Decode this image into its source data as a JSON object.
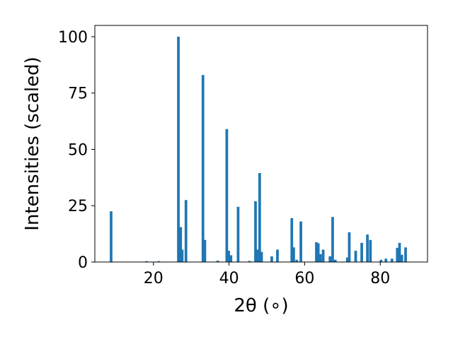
{
  "chart_data": {
    "type": "bar",
    "xlabel": "2θ (∘)",
    "ylabel": "Intensities (scaled)",
    "xlim": [
      4.5,
      92.5
    ],
    "ylim": [
      0,
      105
    ],
    "xticks": [
      20,
      40,
      60,
      80
    ],
    "yticks": [
      0,
      25,
      50,
      75,
      100
    ],
    "bar_color": "#1f77b4",
    "bar_width_deg": 0.7,
    "x": [
      8.8,
      18.2,
      21.4,
      26.6,
      27.2,
      27.6,
      28.6,
      33.1,
      33.6,
      37.0,
      39.4,
      39.9,
      40.5,
      42.4,
      45.4,
      47.0,
      47.5,
      48.1,
      48.6,
      51.3,
      52.8,
      56.6,
      57.1,
      57.9,
      59.0,
      63.1,
      63.6,
      64.2,
      64.9,
      66.7,
      67.4,
      68.1,
      71.3,
      71.8,
      73.5,
      75.1,
      76.6,
      77.4,
      80.2,
      81.5,
      83.1,
      84.5,
      85.1,
      85.7,
      86.7
    ],
    "values": [
      22.5,
      0.4,
      0.4,
      100,
      15.5,
      5.5,
      27.5,
      83,
      9.8,
      0.6,
      59,
      5.0,
      3.0,
      24.5,
      0.5,
      27,
      5.5,
      39.5,
      4.5,
      2.5,
      5.5,
      19.5,
      6.5,
      1.0,
      18,
      8.8,
      8.3,
      3.5,
      5.5,
      2.5,
      20,
      1.0,
      2.0,
      13.2,
      5.0,
      8.5,
      12.2,
      9.8,
      1.0,
      1.5,
      1.5,
      6.3,
      8.5,
      3.2,
      6.5
    ]
  }
}
